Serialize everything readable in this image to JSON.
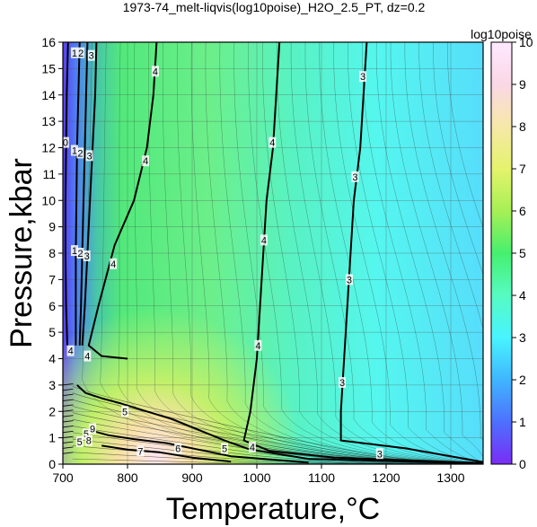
{
  "chart_data": {
    "type": "heatmap",
    "title": "1973-74_melt-liqvis(log10poise)_H2O_2.5_PT, dz=0.2",
    "xlabel": "Temperature,°C",
    "ylabel": "Pressure,kbar",
    "xlim": [
      700,
      1350
    ],
    "ylim": [
      0,
      16
    ],
    "x_ticks": [
      "700",
      "800",
      "900",
      "1000",
      "1100",
      "1200",
      "1300"
    ],
    "y_ticks": [
      "0",
      "1",
      "2",
      "3",
      "4",
      "5",
      "6",
      "7",
      "8",
      "9",
      "10",
      "11",
      "12",
      "13",
      "14",
      "15",
      "16"
    ],
    "grid": true,
    "colorbar": {
      "label": "log10poise",
      "range": [
        0,
        10
      ],
      "ticks": [
        "0",
        "1",
        "2",
        "3",
        "4",
        "5",
        "6",
        "7",
        "8",
        "9",
        "10"
      ],
      "colors": [
        "#7a2cf5",
        "#4d70ff",
        "#3fb6ff",
        "#48f4ff",
        "#56fbc2",
        "#46f06e",
        "#a6f055",
        "#e5f36c",
        "#f6e8a8",
        "#fad7e6",
        "#ffe9ff"
      ]
    },
    "contour_levels_labeled": [
      "0",
      "1",
      "2",
      "3",
      "4",
      "5",
      "6",
      "7",
      "8",
      "9"
    ],
    "contours": [
      {
        "level": 3,
        "points": [
          [
            1170,
            16
          ],
          [
            1165,
            14
          ],
          [
            1160,
            12
          ],
          [
            1150,
            10
          ],
          [
            1145,
            8
          ],
          [
            1140,
            6
          ],
          [
            1135,
            4
          ],
          [
            1130,
            2
          ],
          [
            1130,
            0.9
          ],
          [
            1230,
            0.6
          ],
          [
            1350,
            0.08
          ]
        ]
      },
      {
        "level": 4,
        "points": [
          [
            845,
            16
          ],
          [
            840,
            14
          ],
          [
            830,
            12
          ],
          [
            810,
            10
          ],
          [
            780,
            8.3
          ],
          [
            755,
            6
          ],
          [
            740,
            4.5
          ],
          [
            760,
            4.1
          ],
          [
            800,
            4.0
          ]
        ]
      },
      {
        "level": 4,
        "points": [
          [
            1035,
            16
          ],
          [
            1030,
            14
          ],
          [
            1025,
            12
          ],
          [
            1015,
            10
          ],
          [
            1010,
            8
          ],
          [
            1005,
            6
          ],
          [
            1000,
            4
          ],
          [
            990,
            2
          ],
          [
            980,
            0.9
          ],
          [
            1020,
            0.5
          ],
          [
            1120,
            0.25
          ],
          [
            1350,
            0.04
          ]
        ]
      },
      {
        "level": 5,
        "points": [
          [
            722,
            3.0
          ],
          [
            735,
            2.7
          ],
          [
            760,
            2.5
          ],
          [
            790,
            2.3
          ],
          [
            830,
            2.0
          ],
          [
            870,
            1.7
          ],
          [
            910,
            1.3
          ],
          [
            950,
            0.9
          ],
          [
            990,
            0.55
          ],
          [
            1080,
            0.2
          ],
          [
            1350,
            0.02
          ]
        ]
      },
      {
        "level": 6,
        "points": [
          [
            740,
            1.3
          ],
          [
            770,
            1.1
          ],
          [
            810,
            0.95
          ],
          [
            860,
            0.8
          ],
          [
            910,
            0.55
          ],
          [
            960,
            0.3
          ],
          [
            1080,
            0.06
          ]
        ]
      },
      {
        "level": 7,
        "points": [
          [
            760,
            0.7
          ],
          [
            800,
            0.55
          ],
          [
            850,
            0.45
          ],
          [
            900,
            0.25
          ],
          [
            960,
            0.1
          ]
        ]
      },
      {
        "level": 1,
        "points": [
          [
            726,
            16
          ],
          [
            724,
            14
          ],
          [
            722,
            12
          ],
          [
            721,
            10
          ],
          [
            720,
            8
          ],
          [
            720,
            6
          ],
          [
            720,
            4.5
          ]
        ]
      },
      {
        "level": 2,
        "points": [
          [
            738,
            16
          ],
          [
            736,
            14
          ],
          [
            734,
            12
          ],
          [
            732,
            10
          ],
          [
            730,
            8
          ],
          [
            728,
            6
          ],
          [
            726,
            4.5
          ]
        ]
      },
      {
        "level": 3,
        "points": [
          [
            752,
            16
          ],
          [
            750,
            14
          ],
          [
            746,
            12
          ],
          [
            742,
            10
          ],
          [
            738,
            8
          ],
          [
            734,
            6
          ],
          [
            730,
            4.5
          ]
        ]
      },
      {
        "level": 0,
        "points": [
          [
            708,
            16
          ],
          [
            706,
            14
          ],
          [
            705,
            12
          ],
          [
            704,
            10
          ],
          [
            704,
            8
          ],
          [
            705,
            6
          ],
          [
            707,
            4.5
          ]
        ]
      }
    ],
    "contour_labels": [
      {
        "text": "0",
        "x": 704,
        "y": 12.2
      },
      {
        "text": "1",
        "x": 718,
        "y": 15.6
      },
      {
        "text": "2",
        "x": 728,
        "y": 15.6
      },
      {
        "text": "3",
        "x": 744,
        "y": 15.5
      },
      {
        "text": "4",
        "x": 843,
        "y": 14.9
      },
      {
        "text": "1",
        "x": 718,
        "y": 11.9
      },
      {
        "text": "2",
        "x": 727,
        "y": 11.8
      },
      {
        "text": "3",
        "x": 741,
        "y": 11.7
      },
      {
        "text": "4",
        "x": 828,
        "y": 11.5
      },
      {
        "text": "1",
        "x": 718,
        "y": 8.1
      },
      {
        "text": "2",
        "x": 727,
        "y": 8.0
      },
      {
        "text": "3",
        "x": 737,
        "y": 7.9
      },
      {
        "text": "4",
        "x": 778,
        "y": 7.6
      },
      {
        "text": "4",
        "x": 1024,
        "y": 12.2
      },
      {
        "text": "4",
        "x": 1011,
        "y": 8.5
      },
      {
        "text": "4",
        "x": 1002,
        "y": 4.5
      },
      {
        "text": "3",
        "x": 1164,
        "y": 14.7
      },
      {
        "text": "3",
        "x": 1152,
        "y": 10.9
      },
      {
        "text": "3",
        "x": 1143,
        "y": 7.0
      },
      {
        "text": "3",
        "x": 1132,
        "y": 3.1
      },
      {
        "text": "3",
        "x": 1190,
        "y": 0.4
      },
      {
        "text": "4",
        "x": 712,
        "y": 4.3
      },
      {
        "text": "4",
        "x": 738,
        "y": 4.1
      },
      {
        "text": "5",
        "x": 796,
        "y": 2.0
      },
      {
        "text": "5",
        "x": 950,
        "y": 0.6
      },
      {
        "text": "6",
        "x": 878,
        "y": 0.6
      },
      {
        "text": "7",
        "x": 820,
        "y": 0.5
      },
      {
        "text": "4",
        "x": 993,
        "y": 0.65
      },
      {
        "text": "9",
        "x": 746,
        "y": 1.35
      },
      {
        "text": "5",
        "x": 736,
        "y": 1.15
      },
      {
        "text": "8",
        "x": 740,
        "y": 0.9
      },
      {
        "text": "5",
        "x": 726,
        "y": 0.85
      }
    ]
  }
}
